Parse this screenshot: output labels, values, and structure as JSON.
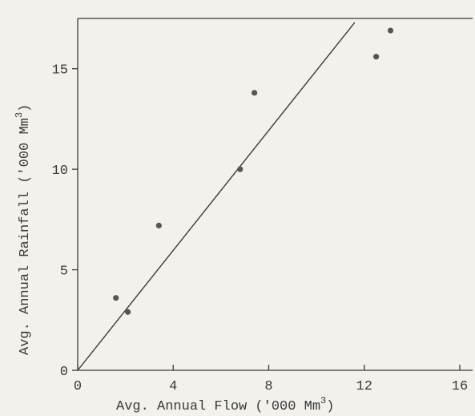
{
  "chart_data": {
    "type": "scatter",
    "title": "",
    "xlabel": "Avg. Annual Flow ('000 Mm",
    "xlabel_sup": "3",
    "xlabel_close": ")",
    "ylabel": "Avg. Annual Rainfall ('000 Mm",
    "ylabel_sup": "3",
    "ylabel_close": ")",
    "xlim": [
      0,
      16
    ],
    "ylim": [
      0,
      17.5
    ],
    "xticks": [
      "0",
      "4",
      "8",
      "12",
      "16"
    ],
    "yticks": [
      "0",
      "5",
      "10",
      "15"
    ],
    "grid": false,
    "points": [
      {
        "x": 1.6,
        "y": 3.6
      },
      {
        "x": 2.1,
        "y": 2.9
      },
      {
        "x": 3.4,
        "y": 7.2
      },
      {
        "x": 6.8,
        "y": 10.0
      },
      {
        "x": 7.4,
        "y": 13.8
      },
      {
        "x": 12.5,
        "y": 15.6
      },
      {
        "x": 13.1,
        "y": 16.9
      }
    ],
    "fit_line": {
      "x": [
        0,
        11.6
      ],
      "y": [
        0,
        17.3
      ]
    },
    "colors": {
      "ink": "#3a3a3a",
      "points": "#555555",
      "background": "#f2f1ec"
    }
  }
}
